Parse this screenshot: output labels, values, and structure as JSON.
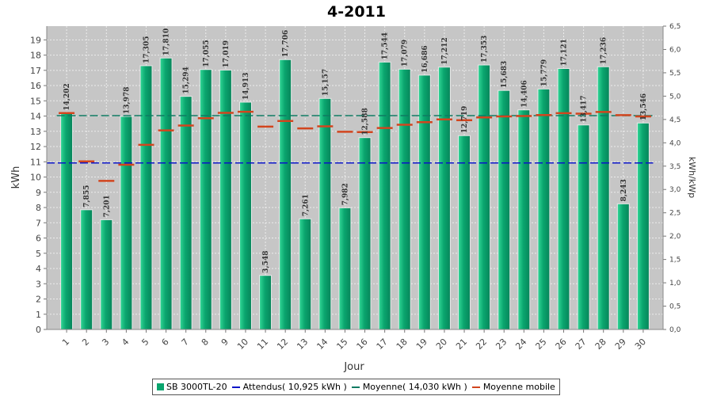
{
  "colors": {
    "bar": "#0aa56e",
    "bar_light": "#33d897",
    "attendus": "#0a14c8",
    "moyenne": "#0f7a62",
    "mobile": "#d2451e",
    "plot_bg": "#c6c6c6",
    "grid": "#ececec"
  },
  "chart_data": {
    "type": "bar",
    "title": "4-2011",
    "xlabel": "Jour",
    "ylabel": "kWh",
    "y2label": "kWh/kWp",
    "ylim": [
      0,
      19.9
    ],
    "y2lim": [
      0,
      6.5
    ],
    "yticks": [
      "0",
      "1",
      "2",
      "3",
      "4",
      "5",
      "6",
      "7",
      "8",
      "9",
      "10",
      "11",
      "12",
      "13",
      "14",
      "15",
      "16",
      "17",
      "18",
      "19"
    ],
    "y2ticks": [
      "0,0",
      "0,5",
      "1,0",
      "1,5",
      "2,0",
      "2,5",
      "3,0",
      "3,5",
      "4,0",
      "4,5",
      "5,0",
      "5,5",
      "6,0",
      "6,5"
    ],
    "grid": true,
    "legend_position": "bottom",
    "categories": [
      "1",
      "2",
      "3",
      "4",
      "5",
      "6",
      "7",
      "8",
      "9",
      "10",
      "11",
      "12",
      "13",
      "14",
      "15",
      "16",
      "17",
      "18",
      "19",
      "20",
      "21",
      "22",
      "23",
      "24",
      "25",
      "26",
      "27",
      "28",
      "29",
      "30"
    ],
    "series": [
      {
        "name": "SB 3000TL-20",
        "type": "bar",
        "values": [
          14.202,
          7.855,
          7.201,
          13.978,
          17.305,
          17.81,
          15.294,
          17.055,
          17.019,
          14.913,
          3.548,
          17.706,
          7.261,
          15.157,
          7.982,
          12.588,
          17.544,
          17.079,
          16.686,
          17.212,
          12.719,
          17.353,
          15.683,
          14.406,
          15.779,
          17.121,
          13.417,
          17.236,
          8.243,
          13.546
        ],
        "labels": [
          "14,202",
          "7,855",
          "7,201",
          "13,978",
          "17,305",
          "17,810",
          "15,294",
          "17,055",
          "17,019",
          "14,913",
          "3,548",
          "17,706",
          "7,261",
          "15,157",
          "7,982",
          "12,588",
          "17,544",
          "17,079",
          "16,686",
          "17,212",
          "12,719",
          "17,353",
          "15,683",
          "14,406",
          "15,779",
          "17,121",
          "13,417",
          "17,236",
          "8,243",
          "13,546"
        ]
      },
      {
        "name": "Attendus( 10,925 kWh )",
        "type": "hline",
        "value": 10.925
      },
      {
        "name": "Moyenne( 14,030 kWh )",
        "type": "hline",
        "value": 14.03
      },
      {
        "name": "Moyenne mobile",
        "type": "marker",
        "values": [
          14.2,
          11.03,
          9.75,
          10.81,
          12.11,
          13.06,
          13.38,
          13.86,
          14.21,
          14.28,
          13.31,
          13.68,
          13.19,
          13.33,
          12.97,
          12.95,
          13.22,
          13.43,
          13.6,
          13.78,
          13.73,
          13.91,
          13.98,
          14.0,
          14.07,
          14.19,
          14.16,
          14.27,
          14.06,
          13.98
        ]
      }
    ]
  },
  "legend": {
    "items": [
      {
        "label": "SB 3000TL-20"
      },
      {
        "label": "Attendus( 10,925 kWh )"
      },
      {
        "label": "Moyenne( 14,030 kWh )"
      },
      {
        "label": "Moyenne mobile"
      }
    ]
  }
}
